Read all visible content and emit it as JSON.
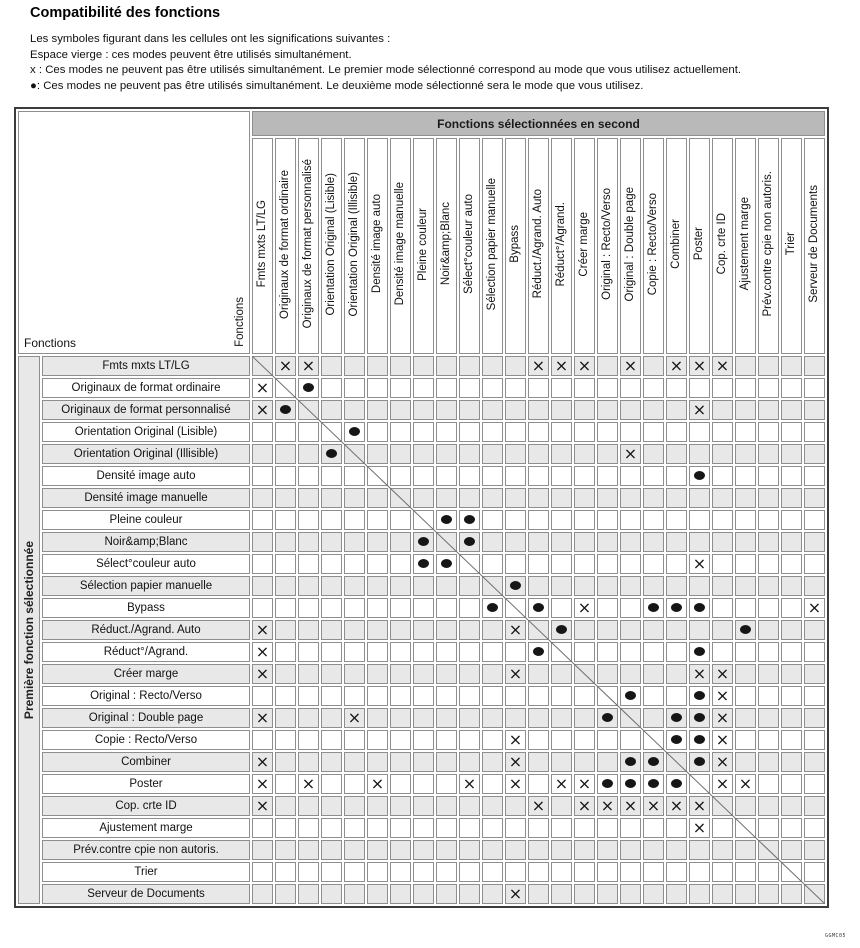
{
  "title": "Compatibilité des fonctions",
  "legend": {
    "line1": "Les symboles figurant dans les cellules ont les significations suivantes :",
    "line2": "Espace vierge : ces modes peuvent être utilisés simultanément.",
    "line3": "x : Ces modes ne peuvent pas être utilisés simultanément. Le premier mode sélectionné correspond au mode que vous utilisez actuellement.",
    "line4": "●: Ces modes ne peuvent pas être utilisés simultanément. Le deuxième mode sélectionné sera le mode que vous utilisez."
  },
  "table": {
    "top_header": "Fonctions sélectionnées en second",
    "left_header": "Première fonction sélectionnée",
    "corner_label": "Fonctions",
    "corner_label_vertical": "Fonctions",
    "columns": [
      "Fmts mxts LT/LG",
      "Originaux de format ordinaire",
      "Originaux de format personnalisé",
      "Orientation Original (Lisible)",
      "Orientation Original (Illisible)",
      "Densité image auto",
      "Densité image manuelle",
      "Pleine couleur",
      "Noir&amp;Blanc",
      "Sélect°couleur auto",
      "Sélection papier manuelle",
      "Bypass",
      "Réduct./Agrand. Auto",
      "Réduct°/Agrand.",
      "Créer marge",
      "Original : Recto/Verso",
      "Original : Double page",
      "Copie : Recto/Verso",
      "Combiner",
      "Poster",
      "Cop. crte ID",
      "Ajustement marge",
      "Prév.contre cpie non autoris.",
      "Trier",
      "Serveur de Documents"
    ],
    "legend_symbols": {
      "blocked_first": "x",
      "blocked_second": "●"
    },
    "rows": [
      {
        "label": "Fmts mxts LT/LG",
        "marks": {
          "2": "x",
          "3": "x",
          "13": "x",
          "14": "x",
          "15": "x",
          "17": "x",
          "19": "x",
          "20": "x",
          "21": "x"
        }
      },
      {
        "label": "Originaux de format ordinaire",
        "marks": {
          "1": "x",
          "3": "o"
        }
      },
      {
        "label": "Originaux de format personnalisé",
        "marks": {
          "1": "x",
          "2": "o",
          "20": "x"
        }
      },
      {
        "label": "Orientation Original (Lisible)",
        "marks": {
          "5": "o"
        }
      },
      {
        "label": "Orientation Original (Illisible)",
        "marks": {
          "4": "o",
          "17": "x"
        }
      },
      {
        "label": "Densité image auto",
        "marks": {
          "20": "o"
        }
      },
      {
        "label": "Densité image manuelle",
        "marks": {}
      },
      {
        "label": "Pleine couleur",
        "marks": {
          "9": "o",
          "10": "o"
        }
      },
      {
        "label": "Noir&amp;Blanc",
        "marks": {
          "8": "o",
          "10": "o"
        }
      },
      {
        "label": "Sélect°couleur auto",
        "marks": {
          "8": "o",
          "9": "o",
          "20": "x"
        }
      },
      {
        "label": "Sélection papier manuelle",
        "marks": {
          "12": "o"
        }
      },
      {
        "label": "Bypass",
        "marks": {
          "11": "o",
          "13": "o",
          "15": "x",
          "18": "o",
          "19": "o",
          "20": "o",
          "25": "x"
        }
      },
      {
        "label": "Réduct./Agrand. Auto",
        "marks": {
          "1": "x",
          "12": "x",
          "14": "o",
          "22": "o"
        }
      },
      {
        "label": "Réduct°/Agrand.",
        "marks": {
          "1": "x",
          "13": "o",
          "20": "o"
        }
      },
      {
        "label": "Créer marge",
        "marks": {
          "1": "x",
          "12": "x",
          "20": "x",
          "21": "x"
        }
      },
      {
        "label": "Original : Recto/Verso",
        "marks": {
          "17": "o",
          "20": "o",
          "21": "x"
        }
      },
      {
        "label": "Original : Double page",
        "marks": {
          "1": "x",
          "5": "x",
          "16": "o",
          "19": "o",
          "20": "o",
          "21": "x"
        }
      },
      {
        "label": "Copie : Recto/Verso",
        "marks": {
          "12": "x",
          "19": "o",
          "20": "o",
          "21": "x"
        }
      },
      {
        "label": "Combiner",
        "marks": {
          "1": "x",
          "12": "x",
          "17": "o",
          "18": "o",
          "20": "o",
          "21": "x"
        }
      },
      {
        "label": "Poster",
        "marks": {
          "1": "x",
          "3": "x",
          "6": "x",
          "10": "x",
          "12": "x",
          "14": "x",
          "15": "x",
          "16": "o",
          "17": "o",
          "18": "o",
          "19": "o",
          "21": "x",
          "22": "x"
        }
      },
      {
        "label": "Cop. crte ID",
        "marks": {
          "1": "x",
          "13": "x",
          "15": "x",
          "16": "x",
          "17": "x",
          "18": "x",
          "19": "x",
          "20": "x"
        }
      },
      {
        "label": "Ajustement marge",
        "marks": {
          "20": "x"
        }
      },
      {
        "label": "Prév.contre cpie non autoris.",
        "marks": {}
      },
      {
        "label": "Trier",
        "marks": {}
      },
      {
        "label": "Serveur de Documents",
        "marks": {
          "12": "x"
        }
      }
    ]
  },
  "footer": {
    "code": "GGMC05"
  },
  "colors": {
    "band_gray": "#b9b9b9",
    "row_alt_gray": "#e8e8e8",
    "grid_line": "#8e8e8e",
    "outer_border": "#3c3c3c",
    "mark": "#161616",
    "diagonal": "#707070"
  }
}
